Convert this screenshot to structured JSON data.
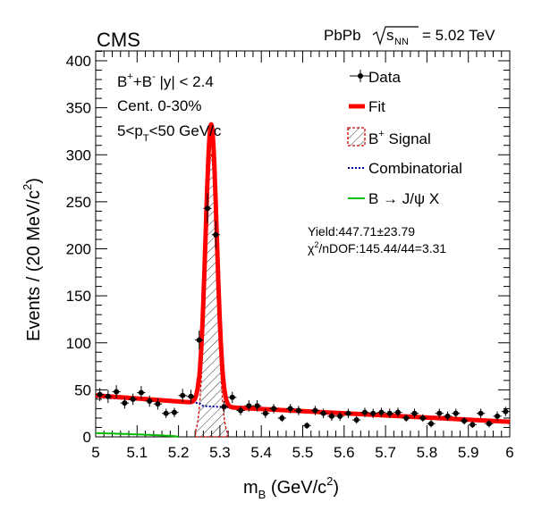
{
  "chart_data": {
    "type": "line",
    "header": {
      "experiment": "CMS",
      "collision": "PbPb",
      "energy_label": "= 5.02 TeV"
    },
    "xlabel": "m",
    "xlabel_sub": "B",
    "xlabel_unit": "(GeV/c",
    "xlabel_unit_sup": "2",
    "xlabel_unit_end": ")",
    "ylabel": "Events / (20 MeV/c",
    "ylabel_sup": "2",
    "ylabel_end": ")",
    "xlim": [
      5.0,
      6.0
    ],
    "ylim": [
      0,
      410
    ],
    "x_ticks": [
      "5",
      "5.1",
      "5.2",
      "5.3",
      "5.4",
      "5.5",
      "5.6",
      "5.7",
      "5.8",
      "5.9",
      "6"
    ],
    "y_ticks": [
      "0",
      "50",
      "100",
      "150",
      "200",
      "250",
      "300",
      "350",
      "400"
    ],
    "selection": {
      "line1": "B+B- |y| < 2.4",
      "line2": "Cent. 0-30%",
      "line3": "5<pT<50 GeV/c"
    },
    "legend": {
      "data": "Data",
      "fit": "Fit",
      "signal": "B+ Signal",
      "combinatorial": "Combinatorial",
      "jpsi": "B → J/ψ X"
    },
    "stats": {
      "yield": "Yield:447.71±23.79",
      "chi2": "χ2/nDOF:145.44/44=3.31"
    },
    "colors": {
      "fit": "#ff0000",
      "signal": "#cc0000",
      "combinatorial": "#000099",
      "jpsi": "#00bb00",
      "data": "#000000"
    },
    "data_points": {
      "x": [
        5.01,
        5.03,
        5.05,
        5.07,
        5.09,
        5.11,
        5.13,
        5.15,
        5.17,
        5.19,
        5.21,
        5.23,
        5.25,
        5.27,
        5.29,
        5.31,
        5.33,
        5.35,
        5.37,
        5.39,
        5.41,
        5.43,
        5.45,
        5.47,
        5.49,
        5.51,
        5.53,
        5.55,
        5.57,
        5.59,
        5.61,
        5.63,
        5.65,
        5.67,
        5.69,
        5.71,
        5.73,
        5.75,
        5.77,
        5.79,
        5.81,
        5.83,
        5.85,
        5.87,
        5.89,
        5.91,
        5.93,
        5.95,
        5.97,
        5.99
      ],
      "y": [
        45,
        43,
        48,
        36,
        40,
        47,
        38,
        35,
        25,
        26,
        44,
        43,
        103,
        243,
        215,
        32,
        42,
        28,
        33,
        33,
        25,
        30,
        20,
        30,
        28,
        12,
        28,
        25,
        22,
        22,
        25,
        18,
        26,
        25,
        26,
        25,
        26,
        20,
        25,
        20,
        14,
        25,
        22,
        25,
        17,
        13,
        25,
        14,
        22,
        27
      ],
      "err": [
        7,
        7,
        7,
        6,
        6,
        7,
        6,
        6,
        5,
        5,
        7,
        7,
        10,
        16,
        15,
        6,
        6,
        5,
        6,
        6,
        5,
        5,
        4,
        5,
        5,
        3.5,
        5,
        5,
        5,
        5,
        5,
        4,
        5,
        5,
        5,
        5,
        5,
        4,
        5,
        4,
        4,
        5,
        5,
        5,
        4,
        3.5,
        5,
        4,
        5,
        5
      ]
    },
    "fit_model": {
      "background": {
        "slope_start": 44,
        "slope_end": 16,
        "knee_x": 5.25,
        "knee_y": 36
      },
      "signal": {
        "mean": 5.279,
        "sigma": 0.0135,
        "peak": 300
      },
      "jpsi_tail": {
        "start": 4,
        "end_x": 5.2
      }
    }
  }
}
